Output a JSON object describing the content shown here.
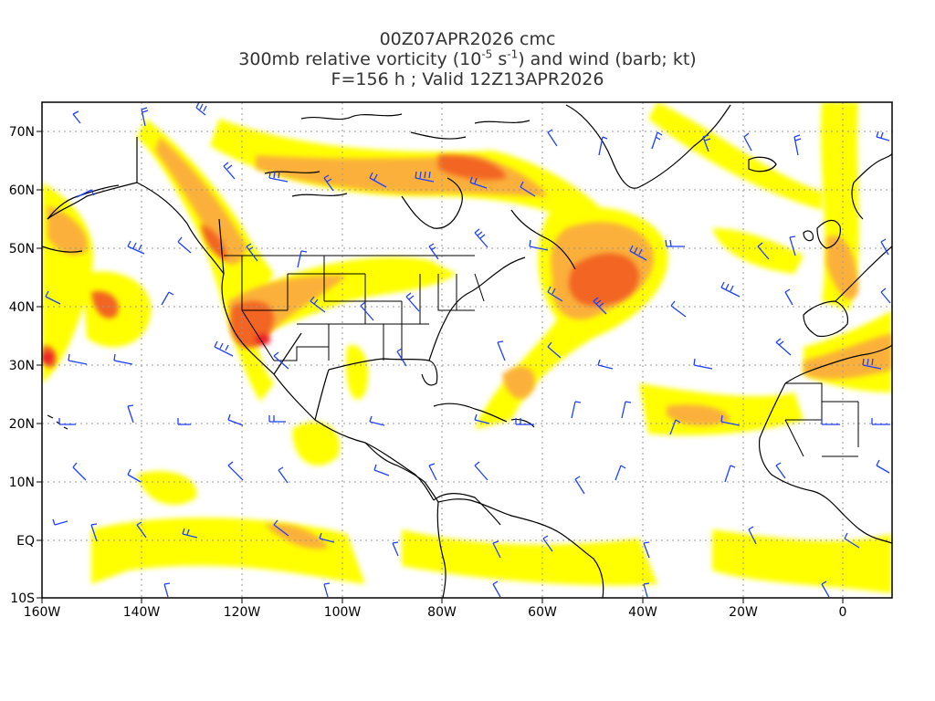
{
  "title": {
    "line1": "00Z07APR2026 cmc",
    "line2_prefix": "300mb relative vorticity (10",
    "line2_exp1": "-5",
    "line2_mid": " s",
    "line2_exp2": "-1",
    "line2_suffix": ") and wind (barb; kt)",
    "line3": "F=156 h ; Valid 12Z13APR2026"
  },
  "axes": {
    "lat_labels": [
      "70N",
      "60N",
      "50N",
      "40N",
      "30N",
      "20N",
      "10N",
      "EQ",
      "10S"
    ],
    "lon_labels": [
      "160W",
      "140W",
      "120W",
      "100W",
      "80W",
      "60W",
      "40W",
      "20W",
      "0"
    ]
  },
  "colors": {
    "vort_low": "#ffff00",
    "vort_mid1": "#fde34d",
    "vort_mid2": "#fbb03b",
    "vort_mid3": "#f7921e",
    "vort_high": "#f26522",
    "vort_peak": "#ee1c25",
    "barb": "#1e3fff",
    "coast": "#000000",
    "grid": "#999999"
  }
}
